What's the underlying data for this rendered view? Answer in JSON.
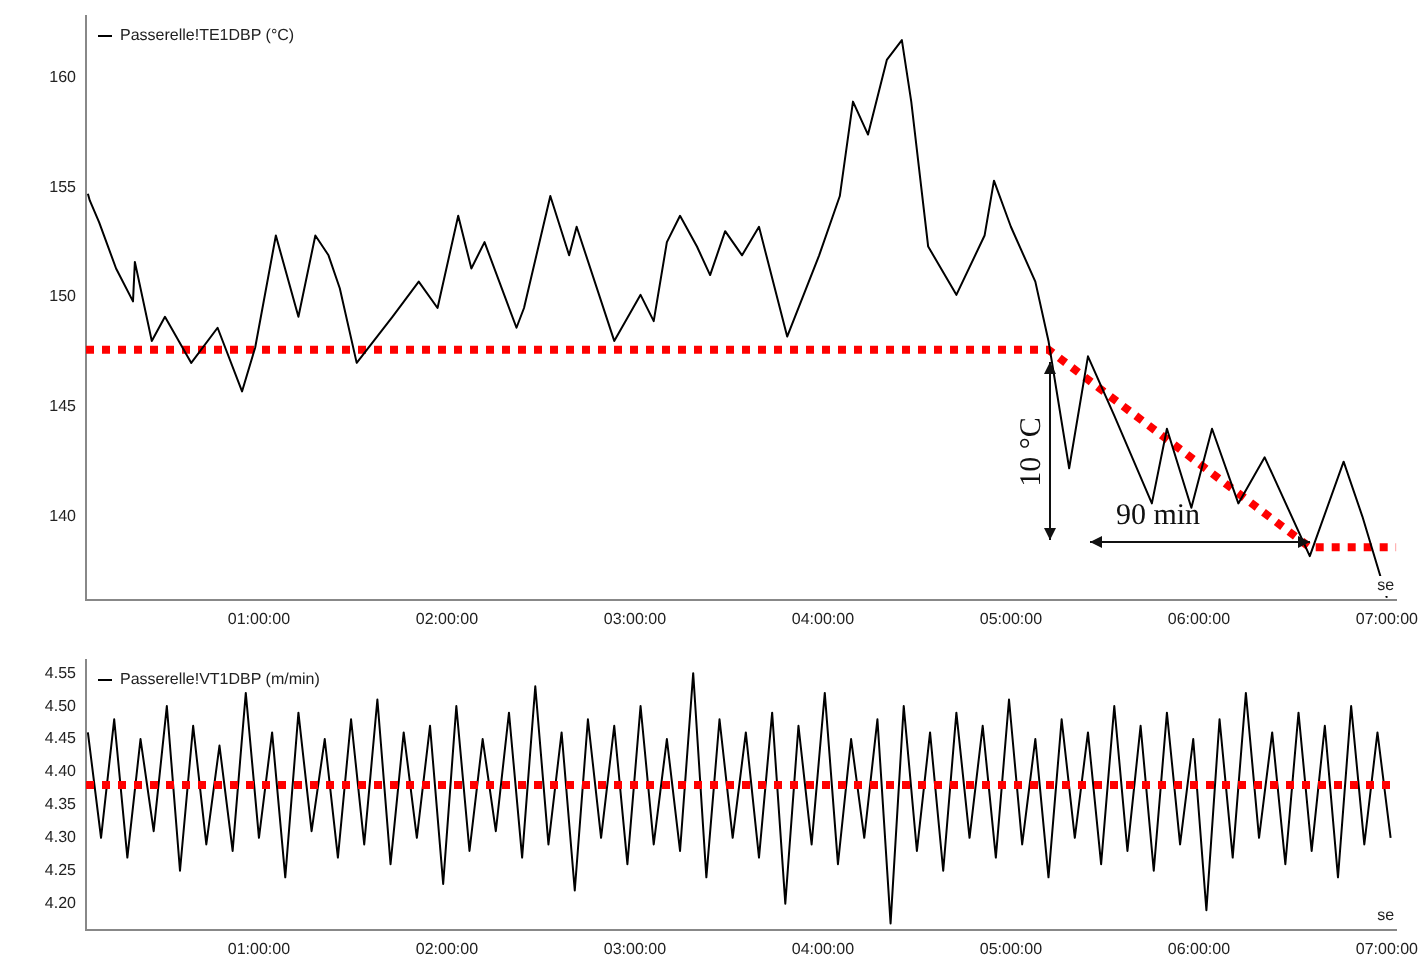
{
  "chart_data": [
    {
      "type": "line",
      "xlabel": "se",
      "legend": "top left",
      "grid": false,
      "marker": "none",
      "xlim": [
        0.08,
        7.05
      ],
      "xticks": [
        {
          "value": 1,
          "label": "01:00:00"
        },
        {
          "value": 2,
          "label": "02:00:00"
        },
        {
          "value": 3,
          "label": "03:00:00"
        },
        {
          "value": 4,
          "label": "04:00:00"
        },
        {
          "value": 5,
          "label": "05:00:00"
        },
        {
          "value": 6,
          "label": "06:00:00"
        },
        {
          "value": 7,
          "label": "07:00:00"
        }
      ],
      "ylim": [
        136.2,
        162.8
      ],
      "yticks": [
        140,
        145,
        150,
        155,
        160
      ],
      "series": [
        {
          "name": "Passerelle!TE1DBP (°C)",
          "color": "#000000",
          "line_style": "solid",
          "x": [
            0.09,
            0.1,
            0.15,
            0.24,
            0.33,
            0.34,
            0.43,
            0.5,
            0.64,
            0.78,
            0.91,
            0.98,
            1.09,
            1.21,
            1.3,
            1.37,
            1.43,
            1.52,
            1.71,
            1.85,
            1.95,
            2.06,
            2.13,
            2.2,
            2.37,
            2.41,
            2.55,
            2.65,
            2.69,
            2.89,
            3.03,
            3.1,
            3.17,
            3.24,
            3.33,
            3.4,
            3.48,
            3.57,
            3.66,
            3.81,
            3.98,
            4.09,
            4.16,
            4.24,
            4.34,
            4.42,
            4.47,
            4.56,
            4.71,
            4.86,
            4.91,
            5.0,
            5.13,
            5.2,
            5.31,
            5.41,
            5.55,
            5.75,
            5.83,
            5.96,
            6.07,
            6.21,
            6.35,
            6.59,
            6.77,
            6.87,
            7.0
          ],
          "values": [
            154.7,
            154.4,
            153.4,
            151.3,
            149.8,
            151.6,
            148.0,
            149.1,
            147.0,
            148.6,
            145.7,
            147.7,
            152.8,
            149.1,
            152.8,
            151.9,
            150.4,
            147.0,
            149.1,
            150.7,
            149.5,
            153.7,
            151.3,
            152.5,
            148.6,
            149.5,
            154.6,
            151.9,
            153.2,
            148.0,
            150.1,
            148.9,
            152.5,
            153.7,
            152.3,
            151.0,
            153.0,
            151.9,
            153.2,
            148.2,
            151.9,
            154.6,
            158.9,
            157.4,
            160.8,
            161.7,
            158.9,
            152.3,
            150.1,
            152.8,
            155.3,
            153.2,
            150.7,
            148.0,
            142.2,
            147.3,
            144.6,
            140.6,
            144.0,
            140.4,
            144.0,
            140.6,
            142.7,
            138.2,
            142.5,
            140.0,
            136.3
          ]
        },
        {
          "color": "#ff0000",
          "line_style": "dotted",
          "x": [
            0.08,
            5.2,
            6.59,
            7.05
          ],
          "values": [
            147.6,
            147.6,
            138.6,
            138.6
          ]
        }
      ],
      "annotations": [
        "10 °C",
        "90 min"
      ]
    },
    {
      "type": "line",
      "xlabel": "se",
      "legend": "top left",
      "grid": false,
      "marker": "none",
      "xlim": [
        0.08,
        7.05
      ],
      "xticks": [
        {
          "value": 1,
          "label": "01:00:00"
        },
        {
          "value": 2,
          "label": "02:00:00"
        },
        {
          "value": 3,
          "label": "03:00:00"
        },
        {
          "value": 4,
          "label": "04:00:00"
        },
        {
          "value": 5,
          "label": "05:00:00"
        },
        {
          "value": 6,
          "label": "06:00:00"
        },
        {
          "value": 7,
          "label": "07:00:00"
        }
      ],
      "ylim": [
        4.16,
        4.57
      ],
      "yticks": [
        {
          "value": 4.2,
          "label": "4.20"
        },
        {
          "value": 4.25,
          "label": "4.25"
        },
        {
          "value": 4.3,
          "label": "4.30"
        },
        {
          "value": 4.35,
          "label": "4.35"
        },
        {
          "value": 4.4,
          "label": "4.40"
        },
        {
          "value": 4.45,
          "label": "4.45"
        },
        {
          "value": 4.5,
          "label": "4.50"
        },
        {
          "value": 4.55,
          "label": "4.55"
        }
      ],
      "ref_lines": [
        {
          "axis": "y",
          "value": 4.38,
          "color": "#ff0000",
          "line_style": "dotted"
        }
      ],
      "series": [
        {
          "name": "Passerelle!VT1DBP (m/min)",
          "color": "#000000",
          "line_style": "solid",
          "x": [
            0.09,
            0.16,
            0.23,
            0.3,
            0.37,
            0.44,
            0.51,
            0.58,
            0.65,
            0.72,
            0.79,
            0.86,
            0.93,
            1.0,
            1.07,
            1.14,
            1.21,
            1.28,
            1.35,
            1.42,
            1.49,
            1.56,
            1.63,
            1.7,
            1.77,
            1.84,
            1.91,
            1.98,
            2.05,
            2.12,
            2.19,
            2.26,
            2.33,
            2.4,
            2.47,
            2.54,
            2.61,
            2.68,
            2.75,
            2.82,
            2.89,
            2.96,
            3.03,
            3.1,
            3.17,
            3.24,
            3.31,
            3.38,
            3.45,
            3.52,
            3.59,
            3.66,
            3.73,
            3.8,
            3.87,
            3.94,
            4.01,
            4.08,
            4.15,
            4.22,
            4.29,
            4.36,
            4.43,
            4.5,
            4.57,
            4.64,
            4.71,
            4.78,
            4.85,
            4.92,
            4.99,
            5.06,
            5.13,
            5.2,
            5.27,
            5.34,
            5.41,
            5.48,
            5.55,
            5.62,
            5.69,
            5.76,
            5.83,
            5.9,
            5.97,
            6.04,
            6.11,
            6.18,
            6.25,
            6.32,
            6.39,
            6.46,
            6.53,
            6.6,
            6.67,
            6.74,
            6.81,
            6.88,
            6.95,
            7.02
          ],
          "values": [
            4.46,
            4.3,
            4.48,
            4.27,
            4.45,
            4.31,
            4.5,
            4.25,
            4.47,
            4.29,
            4.44,
            4.28,
            4.52,
            4.3,
            4.46,
            4.24,
            4.49,
            4.31,
            4.45,
            4.27,
            4.48,
            4.29,
            4.51,
            4.26,
            4.46,
            4.3,
            4.47,
            4.23,
            4.5,
            4.28,
            4.45,
            4.31,
            4.49,
            4.27,
            4.53,
            4.29,
            4.46,
            4.22,
            4.48,
            4.3,
            4.47,
            4.26,
            4.5,
            4.29,
            4.45,
            4.28,
            4.55,
            4.24,
            4.48,
            4.3,
            4.46,
            4.27,
            4.49,
            4.2,
            4.47,
            4.29,
            4.52,
            4.26,
            4.45,
            4.3,
            4.48,
            4.17,
            4.5,
            4.28,
            4.46,
            4.25,
            4.49,
            4.3,
            4.47,
            4.27,
            4.51,
            4.29,
            4.45,
            4.24,
            4.48,
            4.3,
            4.46,
            4.26,
            4.5,
            4.28,
            4.47,
            4.25,
            4.49,
            4.29,
            4.45,
            4.19,
            4.48,
            4.27,
            4.52,
            4.3,
            4.46,
            4.26,
            4.49,
            4.28,
            4.47,
            4.24,
            4.5,
            4.29,
            4.46,
            4.3
          ]
        }
      ]
    }
  ]
}
